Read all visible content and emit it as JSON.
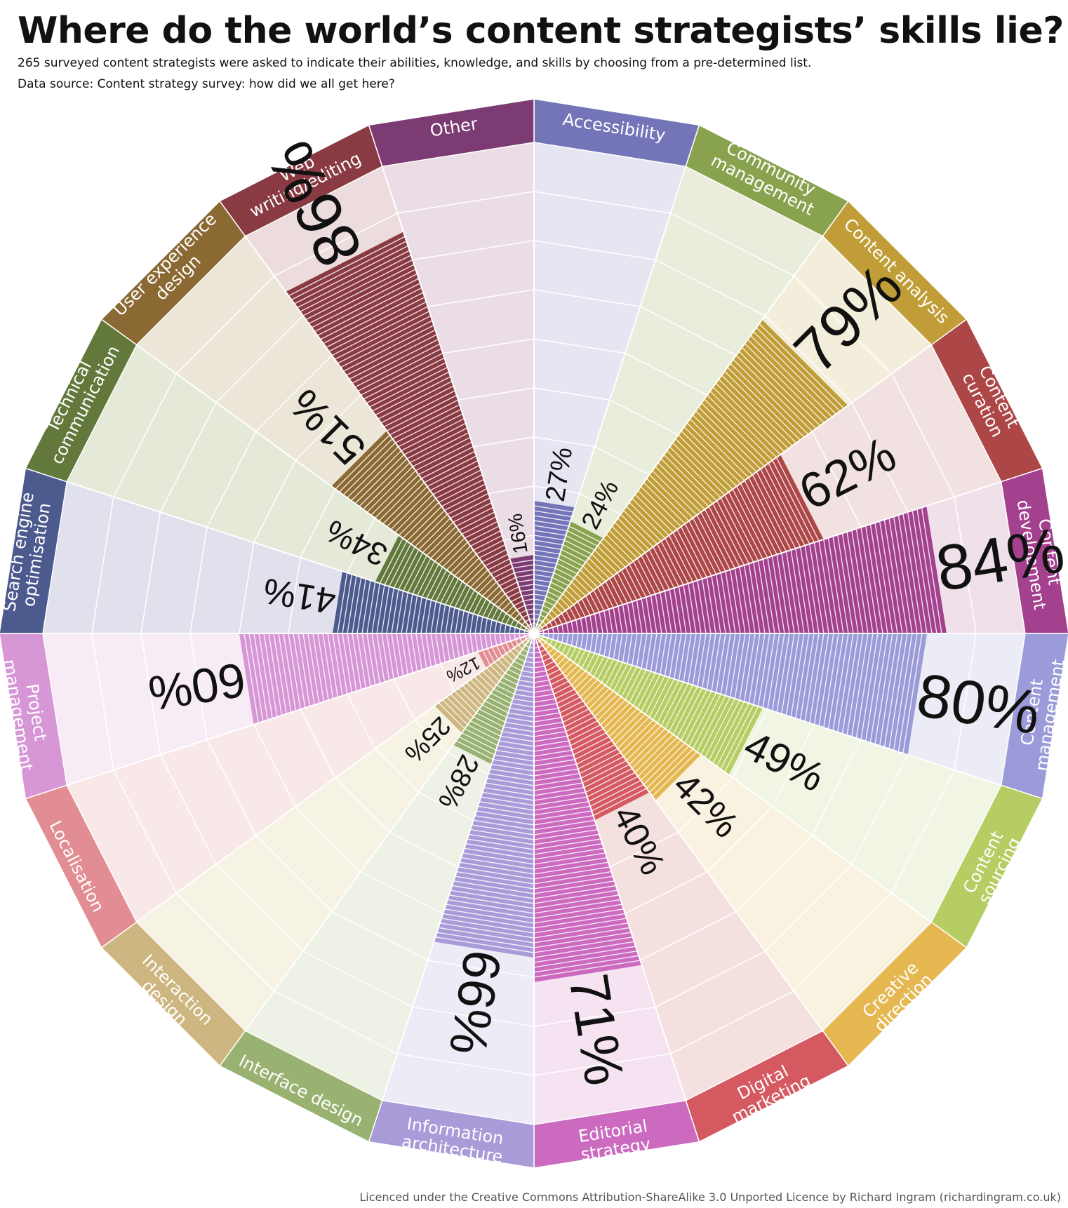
{
  "title": "Where do the world’s content strategists’ skills lie?",
  "subtitle": "265 surveyed content strategists were asked to indicate their abilities, knowledge, and skills by choosing from a pre-determined list.",
  "source": "Data source: Content strategy survey: how did we all get here?",
  "license": "Licenced under the Creative Commons Attribution-ShareAlike 3.0 Unported Licence by Richard Ingram (richardingram.co.uk)",
  "chart_data": {
    "type": "polar-area",
    "unit": "%",
    "respondents": 265,
    "ylim": [
      0,
      100
    ],
    "rings": 10,
    "order": "clockwise from top",
    "categories": [
      {
        "label": [
          "Accessibility"
        ],
        "value": 27,
        "color": "#7474b8",
        "bg": "#e6e6f2"
      },
      {
        "label": [
          "Community",
          "management"
        ],
        "value": 24,
        "color": "#89a24e",
        "bg": "#e9eddc"
      },
      {
        "label": [
          "Content analysis"
        ],
        "value": 79,
        "color": "#c19d37",
        "bg": "#f3eedb"
      },
      {
        "label": [
          "Content",
          "curation"
        ],
        "value": 62,
        "color": "#ad4646",
        "bg": "#f1e1e1"
      },
      {
        "label": [
          "Content",
          "development"
        ],
        "value": 84,
        "color": "#a3418f",
        "bg": "#f0e0ea"
      },
      {
        "label": [
          "Content",
          "management"
        ],
        "value": 80,
        "color": "#9b9bd9",
        "bg": "#ececf6"
      },
      {
        "label": [
          "Content",
          "sourcing"
        ],
        "value": 49,
        "color": "#b5cd62",
        "bg": "#f1f5e3"
      },
      {
        "label": [
          "Creative",
          "direction"
        ],
        "value": 42,
        "color": "#e5b750",
        "bg": "#faf2e0"
      },
      {
        "label": [
          "Digital",
          "marketing"
        ],
        "value": 40,
        "color": "#d55960",
        "bg": "#f5e0e0"
      },
      {
        "label": [
          "Editorial",
          "strategy"
        ],
        "value": 71,
        "color": "#cc6ac0",
        "bg": "#f5e3f2"
      },
      {
        "label": [
          "Information",
          "architecture"
        ],
        "value": 66,
        "color": "#a99ad8",
        "bg": "#ecebf6"
      },
      {
        "label": [
          "Interface design"
        ],
        "value": 28,
        "color": "#99b272",
        "bg": "#eef1e6"
      },
      {
        "label": [
          "Interaction",
          "design"
        ],
        "value": 25,
        "color": "#cdb680",
        "bg": "#f6f2e4"
      },
      {
        "label": [
          "Localisation"
        ],
        "value": 12,
        "color": "#e28d93",
        "bg": "#f9e8e8"
      },
      {
        "label": [
          "Project",
          "management"
        ],
        "value": 60,
        "color": "#d797d6",
        "bg": "#f7ecf5"
      },
      {
        "label": [
          "Search engine",
          "optimisation"
        ],
        "value": 41,
        "color": "#4d5a8e",
        "bg": "#e0e1ec"
      },
      {
        "label": [
          "Technical",
          "communication"
        ],
        "value": 34,
        "color": "#62793b",
        "bg": "#e4e9d8"
      },
      {
        "label": [
          "User experience",
          "design"
        ],
        "value": 51,
        "color": "#8b6933",
        "bg": "#ece6d8"
      },
      {
        "label": [
          "Web",
          "writing/editing"
        ],
        "value": 86,
        "color": "#893a42",
        "bg": "#ecdcdd"
      },
      {
        "label": [
          "Other"
        ],
        "value": 16,
        "color": "#7c3c73",
        "bg": "#ebdde5"
      }
    ]
  }
}
